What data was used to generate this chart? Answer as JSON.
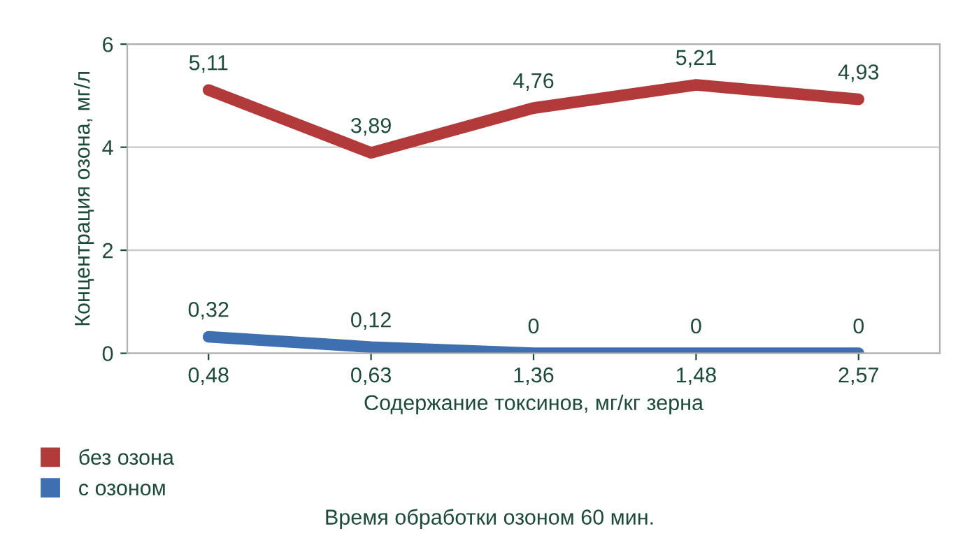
{
  "chart_data": {
    "type": "line",
    "xlabel": "Содержание токсинов, мг/кг зерна",
    "ylabel": "Концентрация озона, мг/л",
    "categories": [
      "0,48",
      "0,63",
      "1,36",
      "1,48",
      "2,57"
    ],
    "series": [
      {
        "name": "без озона",
        "color": "#b23a3a",
        "values": [
          5.11,
          3.89,
          4.76,
          5.21,
          4.93
        ],
        "value_labels": [
          "5,11",
          "3,89",
          "4,76",
          "5,21",
          "4,93"
        ]
      },
      {
        "name": "с озоном",
        "color": "#3e6fb0",
        "values": [
          0.32,
          0.12,
          0,
          0,
          0
        ],
        "value_labels": [
          "0,32",
          "0,12",
          "0",
          "0",
          "0"
        ]
      }
    ],
    "ylim": [
      0,
      6
    ],
    "yticks": [
      0,
      2,
      4,
      6
    ],
    "grid": "y",
    "legend": "bottom left",
    "marker": "none",
    "line_style": "solid",
    "annotations": [
      "Время обработки озоном 60 мин."
    ]
  }
}
